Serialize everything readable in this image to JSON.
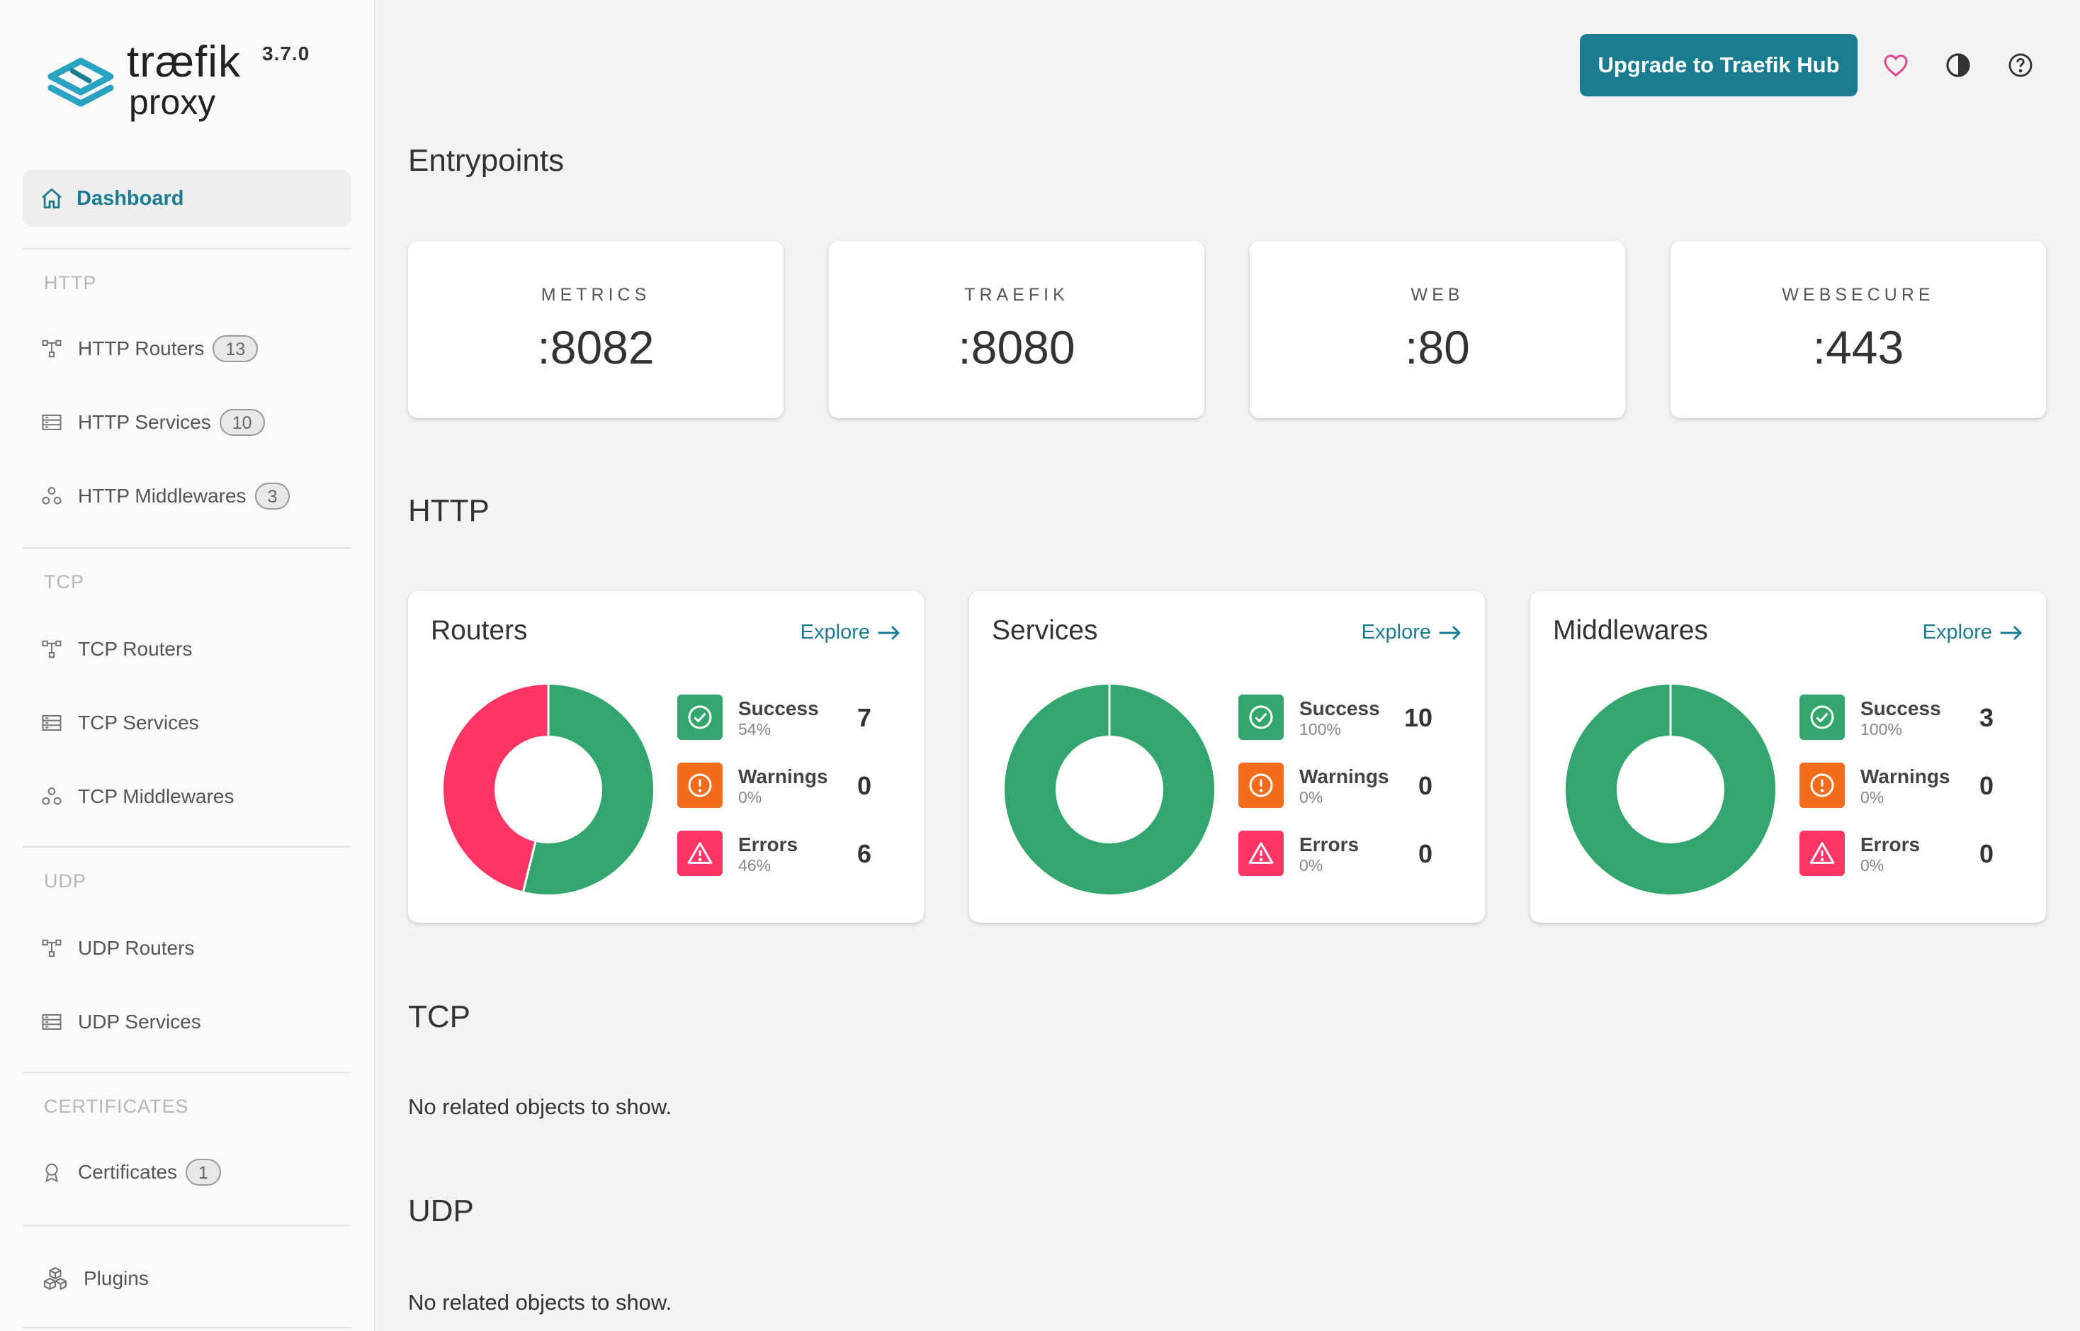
{
  "brand": {
    "name": "træfik",
    "sub": "proxy",
    "version": "3.7.0"
  },
  "nav": {
    "dashboard": "Dashboard",
    "http_section": "HTTP",
    "http_routers": {
      "label": "HTTP Routers",
      "count": "13"
    },
    "http_services": {
      "label": "HTTP Services",
      "count": "10"
    },
    "http_middlewares": {
      "label": "HTTP Middlewares",
      "count": "3"
    },
    "tcp_section": "TCP",
    "tcp_routers": "TCP Routers",
    "tcp_services": "TCP Services",
    "tcp_middlewares": "TCP Middlewares",
    "udp_section": "UDP",
    "udp_routers": "UDP Routers",
    "udp_services": "UDP Services",
    "certs_section": "CERTIFICATES",
    "certificates": {
      "label": "Certificates",
      "count": "1"
    },
    "plugins": "Plugins"
  },
  "topbar": {
    "upgrade_label": "Upgrade to Traefik Hub"
  },
  "entrypoints": {
    "title": "Entrypoints",
    "items": [
      {
        "name": "METRICS",
        "port": ":8082"
      },
      {
        "name": "TRAEFIK",
        "port": ":8080"
      },
      {
        "name": "WEB",
        "port": ":80"
      },
      {
        "name": "WEBSECURE",
        "port": ":443"
      }
    ]
  },
  "http": {
    "title": "HTTP",
    "explore_label": "Explore",
    "cards": [
      {
        "title": "Routers",
        "success": 7,
        "warnings": 0,
        "errors": 6,
        "success_pct": "54%",
        "warnings_pct": "0%",
        "errors_pct": "46%"
      },
      {
        "title": "Services",
        "success": 10,
        "warnings": 0,
        "errors": 0,
        "success_pct": "100%",
        "warnings_pct": "0%",
        "errors_pct": "0%"
      },
      {
        "title": "Middlewares",
        "success": 3,
        "warnings": 0,
        "errors": 0,
        "success_pct": "100%",
        "warnings_pct": "0%",
        "errors_pct": "0%"
      }
    ],
    "labels": {
      "success": "Success",
      "warnings": "Warnings",
      "errors": "Errors"
    }
  },
  "tcp": {
    "title": "TCP",
    "empty": "No related objects to show."
  },
  "udp": {
    "title": "UDP",
    "empty": "No related objects to show."
  },
  "colors": {
    "accent": "#1a7c91",
    "success": "#32a66c",
    "warning": "#f26c1e",
    "error": "#ff3566"
  }
}
